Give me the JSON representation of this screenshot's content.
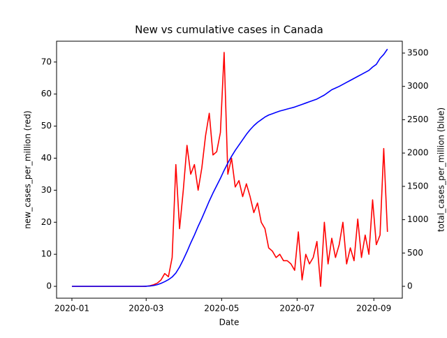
{
  "chart_data": {
    "type": "line",
    "title": "New vs cumulative cases in Canada",
    "x_label": "Date",
    "y_label": "new_cases_per_million (red)",
    "y2_label": "total_cases_per_million (blue)",
    "x": [
      0,
      3,
      6,
      9,
      12,
      15,
      18,
      21,
      24,
      27,
      30,
      33,
      36,
      39,
      42,
      45,
      48,
      51,
      54,
      57,
      60,
      63,
      66,
      69,
      72,
      75,
      78,
      81,
      84,
      87,
      90,
      93,
      96,
      99,
      102,
      105,
      108,
      111,
      114,
      117,
      120,
      123,
      126,
      129,
      132,
      135,
      138,
      141,
      144,
      147,
      150,
      153,
      156,
      159,
      162,
      165,
      168,
      171,
      174,
      177,
      180,
      183,
      186,
      189,
      192,
      195,
      198,
      201,
      204,
      207,
      210,
      213,
      216,
      219,
      222,
      225,
      228,
      231,
      234,
      237,
      240,
      243,
      246,
      249,
      252,
      255
    ],
    "series": [
      {
        "name": "new_cases_per_million",
        "color": "#ff0000",
        "axis": "y",
        "values": [
          0,
          0,
          0,
          0,
          0,
          0,
          0,
          0,
          0,
          0,
          0,
          0,
          0,
          0,
          0,
          0,
          0,
          0,
          0,
          0,
          0,
          0.2,
          0.5,
          1,
          2,
          4,
          3,
          9,
          38,
          18,
          30,
          44,
          35,
          38,
          30,
          37,
          47,
          54,
          41,
          42,
          48,
          73,
          35,
          40,
          31,
          33,
          28,
          32,
          28,
          23,
          26,
          20,
          18,
          12,
          11,
          9,
          10,
          8,
          8,
          7,
          5,
          17,
          2,
          10,
          7,
          9,
          14,
          0,
          20,
          7,
          15,
          9,
          13,
          20,
          7,
          12,
          8,
          21,
          9,
          16,
          10,
          27,
          13,
          16,
          43,
          17
        ]
      },
      {
        "name": "total_cases_per_million",
        "color": "#0000ff",
        "axis": "y2",
        "values": [
          0,
          0,
          0,
          0,
          0,
          0,
          0,
          0,
          0,
          0,
          0,
          0,
          0,
          0,
          0,
          0,
          0,
          0,
          0,
          0,
          2,
          5,
          12,
          25,
          45,
          70,
          100,
          140,
          200,
          290,
          400,
          520,
          650,
          770,
          900,
          1020,
          1150,
          1280,
          1400,
          1510,
          1620,
          1740,
          1850,
          1950,
          2040,
          2120,
          2200,
          2280,
          2350,
          2410,
          2460,
          2500,
          2540,
          2570,
          2590,
          2610,
          2630,
          2645,
          2660,
          2675,
          2690,
          2710,
          2730,
          2750,
          2770,
          2790,
          2810,
          2840,
          2870,
          2910,
          2950,
          2975,
          3000,
          3030,
          3060,
          3090,
          3120,
          3150,
          3180,
          3210,
          3240,
          3290,
          3330,
          3420,
          3480,
          3560
        ]
      }
    ],
    "xlim": [
      -12.4,
      267
    ],
    "xticks": [
      {
        "value": 0,
        "label": "2020-01"
      },
      {
        "value": 60,
        "label": "2020-03"
      },
      {
        "value": 121,
        "label": "2020-05"
      },
      {
        "value": 182,
        "label": "2020-07"
      },
      {
        "value": 244,
        "label": "2020-09"
      }
    ],
    "ylim": [
      -3.7,
      76.5
    ],
    "yticks": [
      0,
      10,
      20,
      30,
      40,
      50,
      60,
      70
    ],
    "y2lim": [
      -178,
      3678
    ],
    "y2ticks": [
      0,
      500,
      1000,
      1500,
      2000,
      2500,
      3000,
      3500
    ]
  }
}
